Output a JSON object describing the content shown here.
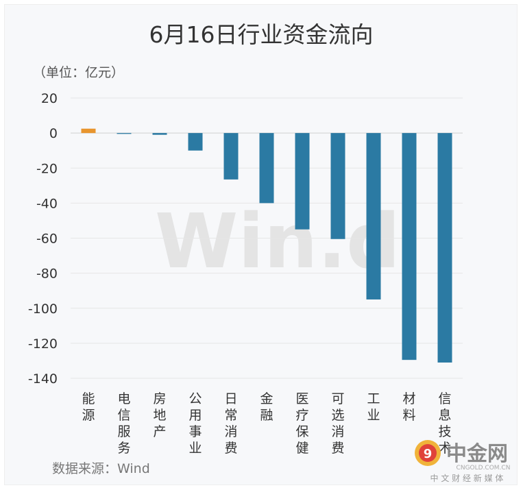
{
  "chart_data": {
    "type": "bar",
    "title": "6月16日行业资金流向",
    "unit_label": "（单位：亿元）",
    "categories": [
      "能源",
      "电信服务",
      "房地产",
      "公用事业",
      "日常消费",
      "金融",
      "医疗保健",
      "可选消费",
      "工业",
      "材料",
      "信息技术"
    ],
    "values": [
      2.5,
      -0.5,
      -1,
      -10,
      -26.5,
      -40,
      -55,
      -60.5,
      -95,
      -129.5,
      -131
    ],
    "ylim": [
      -140,
      20
    ],
    "yticks": [
      20,
      0,
      -20,
      -40,
      -60,
      -80,
      -100,
      -120,
      -140
    ],
    "colors": {
      "positive": "#e8952e",
      "negative": "#2b7aa3"
    },
    "grid": true,
    "legend": "none"
  },
  "source": "数据来源：Wind",
  "watermark": "Win.d",
  "logo": {
    "name": "中金网",
    "site": "CNGOLD.COM.CN",
    "tagline": "中 文 财 经 新 媒 体"
  }
}
